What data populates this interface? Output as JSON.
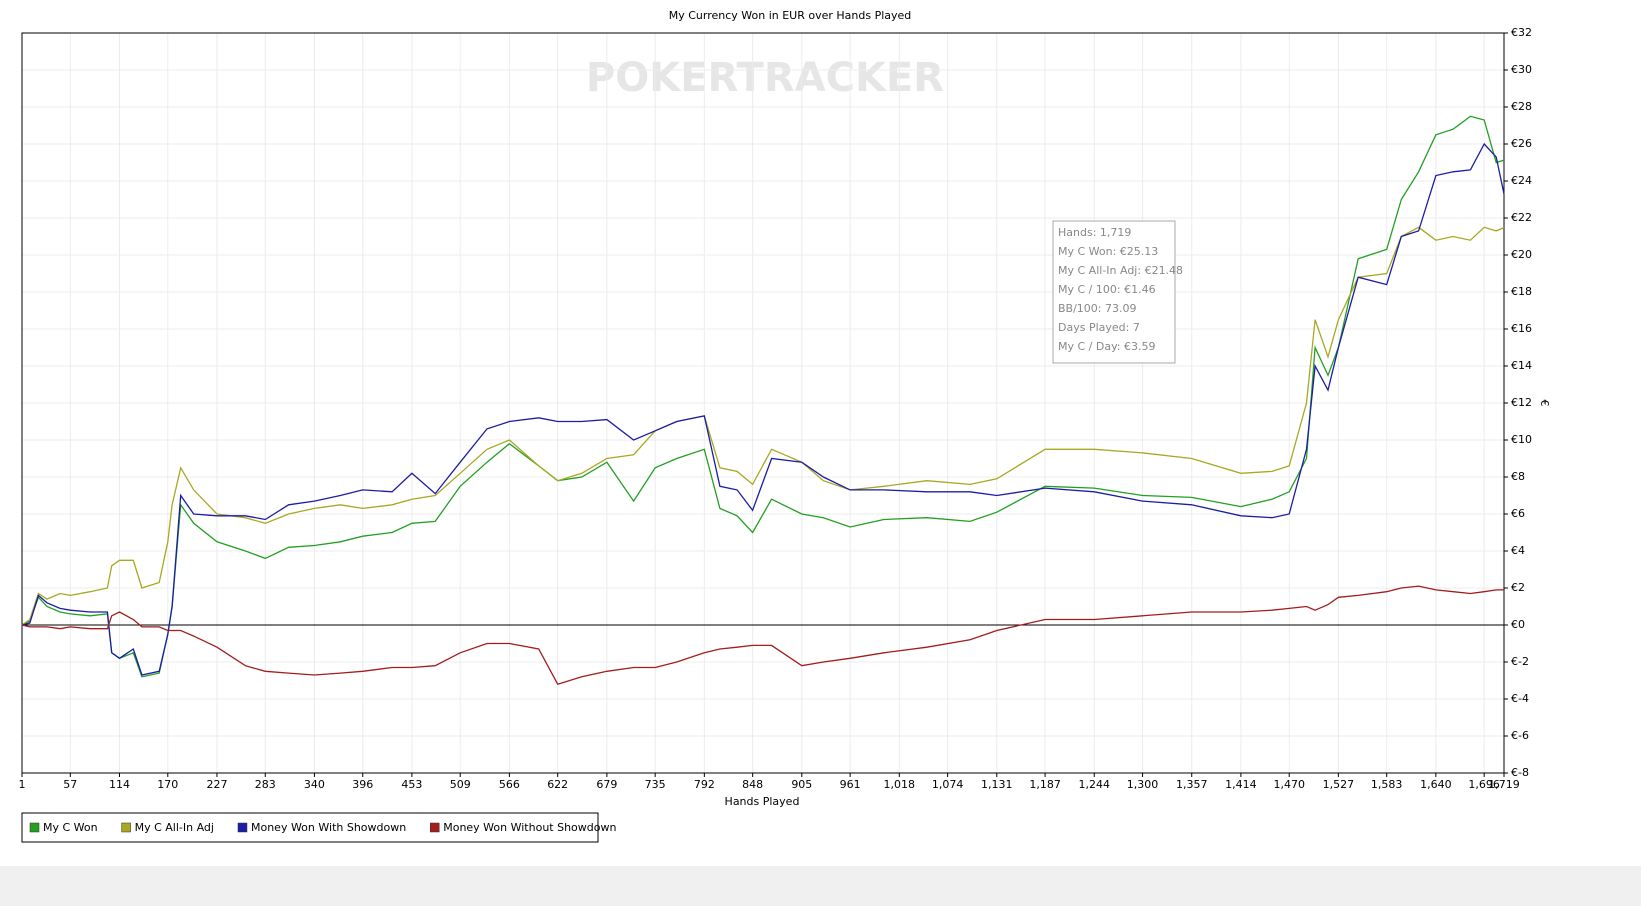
{
  "chart_data": {
    "type": "line",
    "title": "My Currency Won in EUR over Hands Played",
    "watermark": "POKERTRACKER",
    "x_label": "Hands Played",
    "y_label": "€",
    "grid": true,
    "legend": "bottom-left",
    "tooltip": [
      "Hands: 1,719",
      "My C Won: €25.13",
      "My C All-In Adj: €21.48",
      "My C / 100: €1.46",
      "BB/100: 73.09",
      "Days Played: 7",
      "My C / Day: €3.59"
    ],
    "xlim": [
      1,
      1719
    ],
    "xticks": [
      1,
      57,
      114,
      170,
      227,
      283,
      340,
      396,
      453,
      509,
      566,
      622,
      679,
      735,
      792,
      848,
      905,
      961,
      {
        "value": 1018,
        "label": "1,018"
      },
      {
        "value": 1074,
        "label": "1,074"
      },
      {
        "value": 1131,
        "label": "1,131"
      },
      {
        "value": 1187,
        "label": "1,187"
      },
      {
        "value": 1244,
        "label": "1,244"
      },
      {
        "value": 1300,
        "label": "1,300"
      },
      {
        "value": 1357,
        "label": "1,357"
      },
      {
        "value": 1414,
        "label": "1,414"
      },
      {
        "value": 1470,
        "label": "1,470"
      },
      {
        "value": 1527,
        "label": "1,527"
      },
      {
        "value": 1583,
        "label": "1,583"
      },
      {
        "value": 1640,
        "label": "1,640"
      },
      {
        "value": 1696,
        "label": "1,696"
      },
      {
        "value": 1719,
        "label": "1,719"
      }
    ],
    "ylim": [
      -8,
      32
    ],
    "yticks": [
      {
        "value": -8,
        "label": "€-8"
      },
      {
        "value": -6,
        "label": "€-6"
      },
      {
        "value": -4,
        "label": "€-4"
      },
      {
        "value": -2,
        "label": "€-2"
      },
      {
        "value": 0,
        "label": "€0"
      },
      {
        "value": 2,
        "label": "€2"
      },
      {
        "value": 4,
        "label": "€4"
      },
      {
        "value": 6,
        "label": "€6"
      },
      {
        "value": 8,
        "label": "€8"
      },
      {
        "value": 10,
        "label": "€10"
      },
      {
        "value": 12,
        "label": "€12"
      },
      {
        "value": 14,
        "label": "€14"
      },
      {
        "value": 16,
        "label": "€16"
      },
      {
        "value": 18,
        "label": "€18"
      },
      {
        "value": 20,
        "label": "€20"
      },
      {
        "value": 22,
        "label": "€22"
      },
      {
        "value": 24,
        "label": "€24"
      },
      {
        "value": 26,
        "label": "€26"
      },
      {
        "value": 28,
        "label": "€28"
      },
      {
        "value": 30,
        "label": "€30"
      },
      {
        "value": 32,
        "label": "€32"
      }
    ],
    "x": [
      1,
      10,
      20,
      30,
      45,
      57,
      80,
      100,
      105,
      114,
      130,
      140,
      160,
      170,
      175,
      185,
      200,
      227,
      260,
      283,
      310,
      340,
      370,
      396,
      430,
      453,
      480,
      509,
      540,
      566,
      600,
      622,
      650,
      679,
      710,
      735,
      760,
      792,
      810,
      830,
      848,
      870,
      905,
      930,
      961,
      1000,
      1050,
      1100,
      1131,
      1187,
      1244,
      1300,
      1357,
      1414,
      1450,
      1470,
      1490,
      1500,
      1515,
      1527,
      1550,
      1583,
      1600,
      1620,
      1640,
      1660,
      1680,
      1696,
      1710,
      1719
    ],
    "series": [
      {
        "name": "My C Won",
        "color": "#22a022",
        "values": [
          0,
          0.2,
          1.5,
          1.0,
          0.7,
          0.6,
          0.5,
          0.6,
          -1.5,
          -1.8,
          -1.5,
          -2.8,
          -2.6,
          -0.5,
          1,
          6.5,
          5.5,
          4.5,
          4.0,
          3.6,
          4.2,
          4.3,
          4.5,
          4.8,
          5.0,
          5.5,
          5.6,
          7.5,
          8.8,
          9.8,
          8.6,
          7.8,
          8.0,
          8.8,
          6.7,
          8.5,
          9.0,
          9.5,
          6.3,
          5.9,
          5.0,
          6.8,
          6.0,
          5.8,
          5.3,
          5.7,
          5.8,
          5.6,
          6.1,
          7.5,
          7.4,
          7.0,
          6.9,
          6.4,
          6.8,
          7.2,
          9.0,
          15.0,
          13.5,
          15.0,
          19.8,
          20.3,
          23.0,
          24.5,
          26.5,
          26.8,
          27.5,
          27.3,
          25.0,
          25.13
        ]
      },
      {
        "name": "My C All-In Adj",
        "color": "#a8a824",
        "values": [
          0,
          0.3,
          1.7,
          1.4,
          1.7,
          1.6,
          1.8,
          2.0,
          3.2,
          3.5,
          3.5,
          2.0,
          2.3,
          4.5,
          6.5,
          8.5,
          7.3,
          6.0,
          5.8,
          5.5,
          6.0,
          6.3,
          6.5,
          6.3,
          6.5,
          6.8,
          7.0,
          8.2,
          9.5,
          10.0,
          8.6,
          7.8,
          8.2,
          9.0,
          9.2,
          10.5,
          11.0,
          11.3,
          8.5,
          8.3,
          7.6,
          9.5,
          8.8,
          7.8,
          7.3,
          7.5,
          7.8,
          7.6,
          7.9,
          9.5,
          9.5,
          9.3,
          9.0,
          8.2,
          8.3,
          8.6,
          12.0,
          16.5,
          14.5,
          16.5,
          18.8,
          19.0,
          21.0,
          21.5,
          20.8,
          21.0,
          20.8,
          21.5,
          21.3,
          21.48
        ]
      },
      {
        "name": "Money Won With Showdown",
        "color": "#1c1ca4",
        "values": [
          0,
          0.1,
          1.6,
          1.2,
          0.9,
          0.8,
          0.7,
          0.7,
          -1.5,
          -1.8,
          -1.3,
          -2.7,
          -2.5,
          -0.5,
          1,
          7.0,
          6.0,
          5.9,
          5.9,
          5.7,
          6.5,
          6.7,
          7.0,
          7.3,
          7.2,
          8.2,
          7.1,
          8.8,
          10.6,
          11.0,
          11.2,
          11.0,
          11.0,
          11.1,
          10.0,
          10.5,
          11.0,
          11.3,
          7.5,
          7.3,
          6.2,
          9.0,
          8.8,
          8.0,
          7.3,
          7.3,
          7.2,
          7.2,
          7.0,
          7.4,
          7.2,
          6.7,
          6.5,
          5.9,
          5.8,
          6.0,
          9.5,
          14.0,
          12.7,
          15.0,
          18.8,
          18.4,
          21.0,
          21.3,
          24.3,
          24.5,
          24.6,
          26.0,
          25.3,
          23.3
        ]
      },
      {
        "name": "Money Won Without Showdown",
        "color": "#a41c1c",
        "values": [
          0,
          -0.1,
          -0.1,
          -0.1,
          -0.2,
          -0.1,
          -0.2,
          -0.2,
          0.5,
          0.7,
          0.3,
          -0.1,
          -0.1,
          -0.3,
          -0.3,
          -0.3,
          -0.6,
          -1.2,
          -2.2,
          -2.5,
          -2.6,
          -2.7,
          -2.6,
          -2.5,
          -2.3,
          -2.3,
          -2.2,
          -1.5,
          -1.0,
          -1.0,
          -1.3,
          -3.2,
          -2.8,
          -2.5,
          -2.3,
          -2.3,
          -2.0,
          -1.5,
          -1.3,
          -1.2,
          -1.1,
          -1.1,
          -2.2,
          -2.0,
          -1.8,
          -1.5,
          -1.2,
          -0.8,
          -0.3,
          0.3,
          0.3,
          0.5,
          0.7,
          0.7,
          0.8,
          0.9,
          1.0,
          0.8,
          1.1,
          1.5,
          1.6,
          1.8,
          2.0,
          2.1,
          1.9,
          1.8,
          1.7,
          1.8,
          1.9,
          1.9
        ]
      }
    ]
  }
}
